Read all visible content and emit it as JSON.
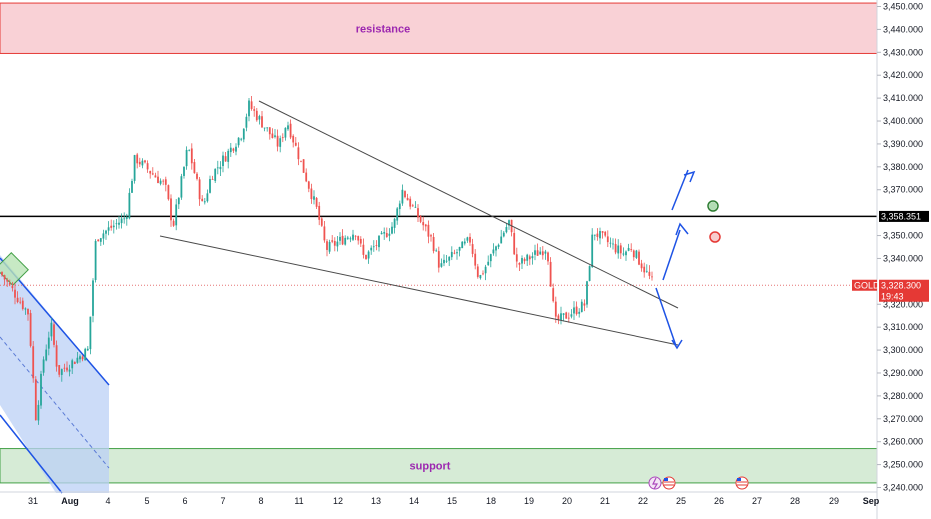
{
  "chart_data": {
    "type": "candlestick",
    "symbol": "GOLD",
    "current_price": "3,328.300",
    "countdown": "19:43",
    "level_price": "3,358.351",
    "ylim": [
      3236,
      3452
    ],
    "y_ticks": [
      "3,450.000",
      "3,440.000",
      "3,430.000",
      "3,420.000",
      "3,410.000",
      "3,400.000",
      "3,390.000",
      "3,380.000",
      "3,370.000",
      "3,350.000",
      "3,340.000",
      "3,320.000",
      "3,310.000",
      "3,300.000",
      "3,290.000",
      "3,280.000",
      "3,270.000",
      "3,260.000",
      "3,250.000",
      "3,240.000"
    ],
    "x_ticks": [
      "31",
      "Aug",
      "4",
      "5",
      "6",
      "7",
      "8",
      "11",
      "12",
      "13",
      "14",
      "15",
      "18",
      "19",
      "20",
      "21",
      "22",
      "25",
      "26",
      "27",
      "28",
      "29",
      "Sep"
    ],
    "zones": {
      "resistance": {
        "label": "resistance",
        "from": 3429.5,
        "to": 3451.5
      },
      "support": {
        "label": "support",
        "from": 3242,
        "to": 3257
      }
    },
    "horizontal_level": 3358.35,
    "price_path": [
      [
        "31",
        3334
      ],
      [
        "31",
        3316
      ],
      [
        "31",
        3270
      ],
      [
        "31",
        3296
      ],
      [
        "31",
        3311
      ],
      [
        "Aug",
        3290
      ],
      [
        "Aug",
        3300
      ],
      [
        "4",
        3349
      ],
      [
        "4",
        3358
      ],
      [
        "5",
        3384
      ],
      [
        "5",
        3372
      ],
      [
        "6",
        3354
      ],
      [
        "6",
        3389
      ],
      [
        "6",
        3362
      ],
      [
        "7",
        3376
      ],
      [
        "7",
        3394
      ],
      [
        "8",
        3407
      ],
      [
        "8",
        3389
      ],
      [
        "11",
        3400
      ],
      [
        "11",
        3361
      ],
      [
        "12",
        3344
      ],
      [
        "12",
        3352
      ],
      [
        "13",
        3340
      ],
      [
        "13",
        3355
      ],
      [
        "14",
        3370
      ],
      [
        "14",
        3348
      ],
      [
        "15",
        3336
      ],
      [
        "15",
        3348
      ],
      [
        "18",
        3331
      ],
      [
        "18",
        3356
      ],
      [
        "19",
        3337
      ],
      [
        "19",
        3345
      ],
      [
        "20",
        3312
      ],
      [
        "20",
        3320
      ],
      [
        "21",
        3352
      ],
      [
        "21",
        3342
      ],
      [
        "22",
        3345
      ],
      [
        "22",
        3328.3
      ]
    ]
  }
}
